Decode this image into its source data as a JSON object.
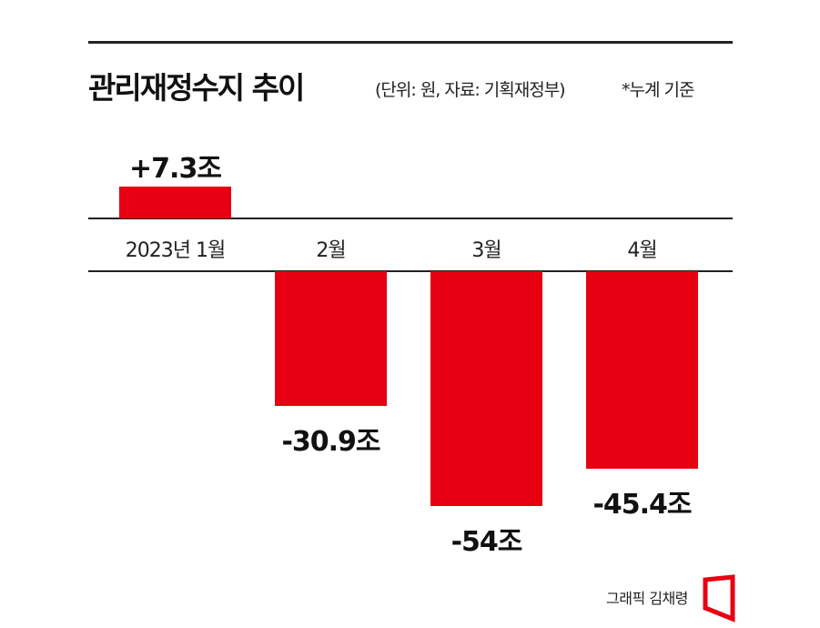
{
  "header": {
    "title": "관리재정수지 추이",
    "subtitle": "(단위: 원, 자료: 기획재정부)",
    "note": "*누계 기준"
  },
  "chart_data": {
    "type": "bar",
    "title": "관리재정수지 추이",
    "categories": [
      "2023년 1월",
      "2월",
      "3월",
      "4월"
    ],
    "values": [
      7.3,
      -30.9,
      -54,
      -45.4
    ],
    "data_labels": [
      "+7.3조",
      "-30.9조",
      "-54조",
      "-45.4조"
    ],
    "unit": "조",
    "bar_color": "#e60012",
    "grid": false,
    "legend": "none"
  },
  "credit": "그래픽 김채령",
  "colors": {
    "accent": "#e60012",
    "text": "#111111"
  }
}
